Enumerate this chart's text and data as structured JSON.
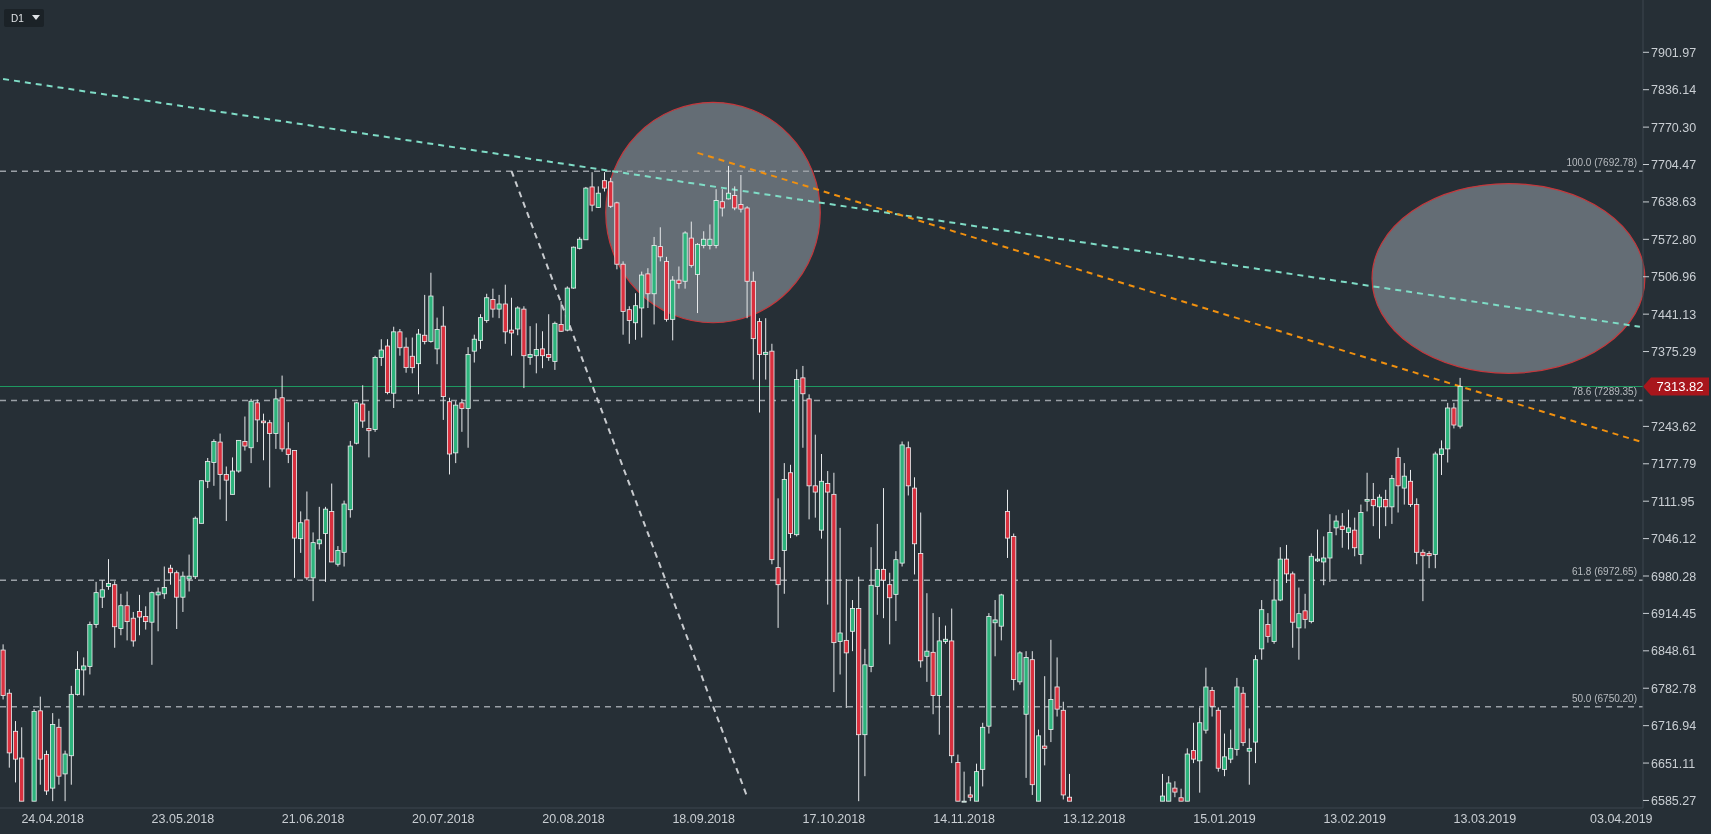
{
  "chart_data": {
    "type": "candlestick",
    "annotations": [
      "D1"
    ],
    "categories": [
      null,
      null,
      null,
      null,
      null,
      null,
      null,
      null,
      "24.04.2018",
      null,
      null,
      null,
      null,
      null,
      null,
      null,
      null,
      null,
      null,
      null,
      null,
      null,
      null,
      null,
      null,
      null,
      null,
      null,
      null,
      "23.05.2018",
      null,
      null,
      null,
      null,
      null,
      null,
      null,
      null,
      null,
      null,
      null,
      null,
      null,
      null,
      null,
      null,
      null,
      null,
      null,
      null,
      "21.06.2018",
      null,
      null,
      null,
      null,
      null,
      null,
      null,
      null,
      null,
      null,
      null,
      null,
      null,
      null,
      null,
      null,
      null,
      null,
      null,
      null,
      "20.07.2018",
      null,
      null,
      null,
      null,
      null,
      null,
      null,
      null,
      null,
      null,
      null,
      null,
      null,
      null,
      null,
      null,
      null,
      null,
      null,
      null,
      "20.08.2018",
      null,
      null,
      null,
      null,
      null,
      null,
      null,
      null,
      null,
      null,
      null,
      null,
      null,
      null,
      null,
      null,
      null,
      null,
      null,
      null,
      "18.09.2018",
      null,
      null,
      null,
      null,
      null,
      null,
      null,
      null,
      null,
      null,
      null,
      null,
      null,
      null,
      null,
      null,
      null,
      null,
      null,
      null,
      "17.10.2018",
      null,
      null,
      null,
      null,
      null,
      null,
      null,
      null,
      null,
      null,
      null,
      null,
      null,
      null,
      null,
      null,
      null,
      null,
      null,
      null,
      "14.11.2018",
      null,
      null,
      null,
      null,
      null,
      null,
      null,
      null,
      null,
      null,
      null,
      null,
      null,
      null,
      null,
      null,
      null,
      null,
      null,
      null,
      "13.12.2018",
      null,
      null,
      null,
      null,
      null,
      null,
      null,
      null,
      null,
      null,
      null,
      null,
      null,
      null,
      null,
      null,
      null,
      null,
      null,
      null,
      "15.01.2019",
      null,
      null,
      null,
      null,
      null,
      null,
      null,
      null,
      null,
      null,
      null,
      null,
      null,
      null,
      null,
      null,
      null,
      null,
      null,
      null,
      "13.02.2019",
      null,
      null,
      null,
      null,
      null,
      null,
      null,
      null,
      null,
      null,
      null,
      null,
      null,
      null,
      null,
      null,
      null,
      null,
      null,
      null,
      "13.03.2019",
      null,
      null,
      null,
      null,
      null,
      null,
      null,
      null,
      null,
      null,
      null,
      null,
      null,
      null,
      null,
      null,
      null,
      null,
      null,
      null,
      null,
      "03.04.2019",
      null,
      null,
      null
    ],
    "ohlc": [
      [
        6850,
        6860,
        6763,
        6770
      ],
      [
        6774,
        6781,
        6643,
        6669
      ],
      [
        6707,
        6725,
        6617,
        6658
      ],
      [
        6660,
        6714,
        6584,
        6584
      ],
      null,
      [
        6584,
        6746,
        6584,
        6742
      ],
      [
        6743,
        6768,
        6613,
        6658
      ],
      [
        6666,
        6673,
        6595,
        6602
      ],
      [
        6607,
        6739,
        6584,
        6719
      ],
      [
        6714,
        6729,
        6613,
        6628
      ],
      [
        6632,
        6673,
        6584,
        6667
      ],
      [
        6664,
        6787,
        6613,
        6772
      ],
      [
        6772,
        6848,
        6770,
        6816
      ],
      [
        6815,
        6837,
        6770,
        6822
      ],
      [
        6821,
        6900,
        6807,
        6895
      ],
      [
        6895,
        6970,
        6889,
        6951
      ],
      [
        6943,
        6973,
        6924,
        6956
      ],
      [
        6962,
        7010,
        6956,
        6967
      ],
      [
        6965,
        6971,
        6854,
        6891
      ],
      [
        6888,
        6949,
        6876,
        6928
      ],
      [
        6928,
        6953,
        6867,
        6900
      ],
      [
        6906,
        6917,
        6856,
        6866
      ],
      [
        6918,
        6947,
        6876,
        6908
      ],
      [
        6909,
        6927,
        6886,
        6900
      ],
      [
        6899,
        6953,
        6824,
        6951
      ],
      [
        6947,
        6960,
        6883,
        6952
      ],
      [
        6949,
        6997,
        6940,
        6960
      ],
      [
        6994,
        7000,
        6965,
        6986
      ],
      [
        6986,
        6990,
        6887,
        6943
      ],
      [
        6943,
        6988,
        6917,
        6980
      ],
      [
        6975,
        7018,
        6953,
        6980
      ],
      [
        6979,
        7085,
        6975,
        7082
      ],
      [
        7073,
        7148,
        7073,
        7148
      ],
      [
        7147,
        7188,
        7135,
        7182
      ],
      [
        7180,
        7221,
        7139,
        7217
      ],
      [
        7216,
        7231,
        7115,
        7159
      ],
      [
        7159,
        7173,
        7077,
        7149
      ],
      [
        7124,
        7189,
        7124,
        7165
      ],
      [
        7165,
        7219,
        7162,
        7219
      ],
      [
        7217,
        7261,
        7201,
        7209
      ],
      [
        7206,
        7292,
        7179,
        7288
      ],
      [
        7285,
        7291,
        7216,
        7255
      ],
      [
        7253,
        7266,
        7184,
        7250
      ],
      [
        7250,
        7255,
        7136,
        7231
      ],
      [
        7231,
        7309,
        7204,
        7292
      ],
      [
        7294,
        7333,
        7199,
        7204
      ],
      [
        7204,
        7251,
        7179,
        7194
      ],
      [
        7201,
        7201,
        6977,
        7047
      ],
      [
        7046,
        7094,
        7021,
        7074
      ],
      [
        7079,
        7129,
        6973,
        6977
      ],
      [
        6977,
        7057,
        6936,
        7039
      ],
      [
        7037,
        7102,
        7027,
        7044
      ],
      [
        7055,
        7102,
        6970,
        7098
      ],
      [
        7094,
        7143,
        7005,
        7005
      ],
      [
        7001,
        7033,
        6997,
        7025
      ],
      [
        7022,
        7113,
        6997,
        7107
      ],
      [
        7097,
        7218,
        7083,
        7209
      ],
      [
        7214,
        7286,
        7212,
        7285
      ],
      [
        7283,
        7316,
        7241,
        7253
      ],
      [
        7240,
        7271,
        7189,
        7236
      ],
      [
        7238,
        7368,
        7234,
        7365
      ],
      [
        7365,
        7397,
        7350,
        7378
      ],
      [
        7385,
        7397,
        7300,
        7303
      ],
      [
        7302,
        7419,
        7276,
        7410
      ],
      [
        7410,
        7415,
        7368,
        7382
      ],
      [
        7383,
        7400,
        7338,
        7347
      ],
      [
        7367,
        7400,
        7337,
        7347
      ],
      [
        7354,
        7415,
        7300,
        7406
      ],
      [
        7404,
        7475,
        7388,
        7393
      ],
      [
        7393,
        7514,
        7391,
        7473
      ],
      [
        7380,
        7435,
        7353,
        7414
      ],
      [
        7420,
        7455,
        7255,
        7296
      ],
      [
        7287,
        7294,
        7159,
        7195
      ],
      [
        7197,
        7288,
        7179,
        7281
      ],
      [
        7285,
        7292,
        7234,
        7275
      ],
      [
        7275,
        7383,
        7206,
        7370
      ],
      [
        7376,
        7405,
        7356,
        7397
      ],
      [
        7395,
        7441,
        7380,
        7435
      ],
      [
        7430,
        7477,
        7426,
        7470
      ],
      [
        7467,
        7486,
        7435,
        7450
      ],
      [
        7450,
        7475,
        7434,
        7459
      ],
      [
        7459,
        7493,
        7389,
        7410
      ],
      [
        7413,
        7470,
        7368,
        7408
      ],
      [
        7415,
        7455,
        7404,
        7452
      ],
      [
        7450,
        7455,
        7311,
        7368
      ],
      [
        7365,
        7420,
        7352,
        7370
      ],
      [
        7368,
        7425,
        7337,
        7379
      ],
      [
        7380,
        7411,
        7346,
        7368
      ],
      [
        7370,
        7441,
        7359,
        7365
      ],
      [
        7358,
        7428,
        7343,
        7425
      ],
      [
        7423,
        7464,
        7410,
        7411
      ],
      [
        7413,
        7490,
        7411,
        7487
      ],
      [
        7487,
        7560,
        7486,
        7559
      ],
      [
        7557,
        7577,
        7555,
        7573
      ],
      [
        7572,
        7665,
        7572,
        7663
      ],
      [
        7665,
        7691,
        7622,
        7633
      ],
      [
        7629,
        7666,
        7628,
        7654
      ],
      [
        7676,
        7691,
        7657,
        7663
      ],
      [
        7674,
        7681,
        7628,
        7631
      ],
      [
        7637,
        7639,
        7520,
        7529
      ],
      [
        7529,
        7534,
        7405,
        7446
      ],
      [
        7449,
        7455,
        7389,
        7430
      ],
      [
        7426,
        7478,
        7396,
        7456
      ],
      [
        7452,
        7516,
        7400,
        7510
      ],
      [
        7512,
        7522,
        7452,
        7477
      ],
      [
        7477,
        7577,
        7423,
        7562
      ],
      [
        7560,
        7594,
        7534,
        7542
      ],
      [
        7534,
        7542,
        7428,
        7432
      ],
      [
        7432,
        7508,
        7395,
        7501
      ],
      [
        7501,
        7525,
        7486,
        7495
      ],
      [
        7499,
        7587,
        7486,
        7584
      ],
      [
        7575,
        7604,
        7523,
        7527
      ],
      [
        7511,
        7566,
        7443,
        7564
      ],
      [
        7562,
        7587,
        7557,
        7573
      ],
      [
        7562,
        7599,
        7555,
        7573
      ],
      [
        7562,
        7661,
        7557,
        7641
      ],
      [
        7639,
        7661,
        7613,
        7628
      ],
      [
        7644,
        7702,
        7643,
        7654
      ],
      [
        7650,
        7666,
        7624,
        7628
      ],
      [
        7634,
        7686,
        7620,
        7626
      ],
      [
        7628,
        7631,
        7434,
        7499
      ],
      [
        7499,
        7516,
        7326,
        7398
      ],
      [
        7428,
        7434,
        7268,
        7370
      ],
      [
        7370,
        7434,
        7326,
        7374
      ],
      [
        7376,
        7389,
        7001,
        7009
      ],
      [
        6995,
        7117,
        6889,
        6965
      ],
      [
        7025,
        7179,
        6949,
        7150
      ],
      [
        7162,
        7176,
        7047,
        7055
      ],
      [
        7053,
        7344,
        7050,
        7326
      ],
      [
        7329,
        7350,
        7206,
        7301
      ],
      [
        7292,
        7300,
        7080,
        7139
      ],
      [
        7139,
        7229,
        7083,
        7128
      ],
      [
        7061,
        7195,
        7046,
        7147
      ],
      [
        7143,
        7165,
        6930,
        7128
      ],
      [
        7124,
        7162,
        6776,
        6863
      ],
      [
        6865,
        7065,
        6807,
        6880
      ],
      [
        6867,
        6975,
        6748,
        6845
      ],
      [
        6883,
        6938,
        6848,
        6923
      ],
      [
        6923,
        6979,
        6584,
        6701
      ],
      [
        6701,
        6852,
        6628,
        6824
      ],
      [
        6821,
        7031,
        6811,
        6964
      ],
      [
        6962,
        7072,
        6912,
        6992
      ],
      [
        6992,
        7135,
        6906,
        6973
      ],
      [
        6965,
        6986,
        6860,
        6942
      ],
      [
        6948,
        7024,
        6901,
        7009
      ],
      [
        7003,
        7217,
        6997,
        7211
      ],
      [
        7206,
        7217,
        7122,
        7139
      ],
      [
        7135,
        7154,
        6983,
        7037
      ],
      [
        7020,
        7092,
        6819,
        6831
      ],
      [
        6839,
        6950,
        6794,
        6848
      ],
      [
        6846,
        6915,
        6737,
        6770
      ],
      [
        6770,
        6908,
        6701,
        6866
      ],
      [
        6865,
        6893,
        6861,
        6869
      ],
      [
        6866,
        6923,
        6651,
        6664
      ],
      [
        6652,
        6666,
        6584,
        6584
      ],
      [
        6584,
        6636,
        6584,
        6584
      ],
      [
        6595,
        6610,
        6584,
        6591
      ],
      [
        6584,
        6650,
        6584,
        6636
      ],
      [
        6640,
        6722,
        6610,
        6714
      ],
      [
        6716,
        6915,
        6703,
        6909
      ],
      [
        6898,
        6938,
        6839,
        6903
      ],
      [
        6892,
        6949,
        6867,
        6947
      ],
      [
        7094,
        7132,
        7012,
        7047
      ],
      [
        7050,
        7055,
        6779,
        6798
      ],
      [
        6794,
        6848,
        6789,
        6845
      ],
      [
        6737,
        6848,
        6625,
        6837
      ],
      [
        6833,
        6848,
        6595,
        6613
      ],
      [
        6584,
        6710,
        6584,
        6699
      ],
      [
        6681,
        6804,
        6647,
        6677
      ],
      [
        6710,
        6868,
        6688,
        6763
      ],
      [
        6785,
        6837,
        6733,
        6746
      ],
      [
        6744,
        6759,
        6587,
        6595
      ],
      [
        6591,
        6632,
        6584,
        6584
      ],
      null,
      null,
      null,
      null,
      null,
      null,
      null,
      null,
      null,
      null,
      null,
      null,
      null,
      null,
      [
        6584,
        6632,
        6584,
        6593
      ],
      [
        6584,
        6628,
        6584,
        6616
      ],
      [
        6607,
        6619,
        6591,
        6600
      ],
      [
        6590,
        6606,
        6584,
        6584
      ],
      [
        6584,
        6677,
        6584,
        6667
      ],
      [
        6673,
        6722,
        6651,
        6658
      ],
      [
        6655,
        6749,
        6599,
        6722
      ],
      [
        6709,
        6819,
        6703,
        6785
      ],
      [
        6779,
        6785,
        6733,
        6751
      ],
      [
        6744,
        6749,
        6636,
        6642
      ],
      [
        6640,
        6703,
        6628,
        6662
      ],
      [
        6658,
        6710,
        6651,
        6677
      ],
      [
        6675,
        6801,
        6664,
        6785
      ],
      [
        6774,
        6785,
        6681,
        6687
      ],
      [
        6672,
        6712,
        6613,
        6677
      ],
      [
        6688,
        6841,
        6651,
        6833
      ],
      [
        6852,
        6938,
        6833,
        6921
      ],
      [
        6895,
        6915,
        6863,
        6874
      ],
      [
        6865,
        6975,
        6861,
        6938
      ],
      [
        6938,
        7031,
        6936,
        7010
      ],
      [
        7010,
        7035,
        6968,
        6984
      ],
      [
        6984,
        6988,
        6854,
        6899
      ],
      [
        6889,
        6960,
        6833,
        6914
      ],
      [
        6919,
        6949,
        6888,
        6904
      ],
      [
        6900,
        7020,
        6897,
        7015
      ],
      [
        7007,
        7062,
        7005,
        7010
      ],
      [
        7005,
        7050,
        6964,
        7012
      ],
      [
        7012,
        7089,
        6970,
        7057
      ],
      [
        7065,
        7087,
        7052,
        7077
      ],
      [
        7068,
        7091,
        7030,
        7062
      ],
      [
        7057,
        7097,
        7027,
        7065
      ],
      [
        7061,
        7083,
        7015,
        7030
      ],
      [
        7018,
        7106,
        7001,
        7092
      ],
      [
        7112,
        7162,
        7094,
        7115
      ],
      [
        7115,
        7144,
        7068,
        7104
      ],
      [
        7102,
        7124,
        7046,
        7119
      ],
      [
        7115,
        7132,
        7068,
        7102
      ],
      [
        7102,
        7158,
        7072,
        7152
      ],
      [
        7189,
        7206,
        7092,
        7139
      ],
      [
        7135,
        7179,
        7106,
        7156
      ],
      [
        7147,
        7167,
        7102,
        7106
      ],
      [
        7106,
        7117,
        7001,
        7022
      ],
      [
        7022,
        7027,
        6936,
        7016
      ],
      [
        7020,
        7024,
        6994,
        7016
      ],
      [
        7018,
        7199,
        6994,
        7195
      ],
      [
        7194,
        7219,
        7158,
        7204
      ],
      [
        7204,
        7285,
        7180,
        7276
      ],
      [
        7276,
        7285,
        7240,
        7246
      ],
      [
        7244,
        7329,
        7240,
        7314
      ],
      null,
      null,
      null,
      null,
      null,
      null,
      null,
      null,
      null,
      null,
      null,
      null,
      null,
      null,
      null,
      null,
      null,
      null,
      null,
      null,
      null,
      null,
      null,
      null,
      null,
      null,
      null,
      null,
      null
    ],
    "ylim": [
      6572,
      7994
    ],
    "yticks": [
      7901.97,
      7836.14,
      {
        "value": 7770.3,
        "label": "7770.30"
      },
      7704.47,
      7638.63,
      {
        "value": 7572.8,
        "label": "7572.80"
      },
      7506.96,
      7441.13,
      7375.29,
      7243.62,
      7177.79,
      7111.95,
      7046.12,
      6980.28,
      6914.45,
      6848.61,
      6782.78,
      6716.94,
      6651.11,
      6585.27
    ],
    "series": [
      {
        "type": "line",
        "color": "#7fdcc6",
        "line_style": "dashed",
        "values": [
          7855,
          null,
          null,
          null,
          null,
          null,
          null,
          null,
          null,
          null,
          null,
          null,
          null,
          null,
          null,
          null,
          null,
          null,
          null,
          null,
          null,
          null,
          null,
          null,
          null,
          null,
          null,
          null,
          null,
          null,
          null,
          null,
          null,
          null,
          null,
          null,
          null,
          null,
          null,
          null,
          null,
          null,
          null,
          null,
          null,
          null,
          null,
          null,
          null,
          null,
          null,
          null,
          null,
          null,
          null,
          null,
          null,
          null,
          null,
          null,
          null,
          null,
          null,
          null,
          null,
          null,
          null,
          null,
          null,
          null,
          null,
          null,
          null,
          null,
          null,
          null,
          null,
          null,
          null,
          null,
          null,
          null,
          null,
          null,
          null,
          null,
          null,
          null,
          null,
          null,
          null,
          null,
          null,
          null,
          null,
          null,
          null,
          null,
          null,
          null,
          null,
          null,
          null,
          null,
          null,
          null,
          null,
          null,
          null,
          null,
          null,
          null,
          null,
          null,
          null,
          null,
          null,
          null,
          null,
          null,
          null,
          null,
          null,
          null,
          null,
          null,
          null,
          null,
          null,
          null,
          null,
          null,
          null,
          null,
          null,
          null,
          null,
          null,
          null,
          null,
          null,
          null,
          null,
          null,
          null,
          null,
          null,
          null,
          null,
          null,
          null,
          null,
          null,
          null,
          null,
          null,
          null,
          null,
          null,
          null,
          null,
          null,
          null,
          null,
          null,
          null,
          null,
          null,
          null,
          null,
          null,
          null,
          null,
          null,
          null,
          null,
          null,
          null,
          null,
          null,
          null,
          null,
          null,
          null,
          null,
          null,
          null,
          null,
          null,
          null,
          null,
          null,
          null,
          null,
          null,
          null,
          null,
          null,
          null,
          null,
          null,
          null,
          null,
          null,
          null,
          null,
          null,
          null,
          null,
          null,
          null,
          null,
          null,
          null,
          null,
          null,
          null,
          null,
          null,
          null,
          null,
          null,
          null,
          null,
          null,
          null,
          null,
          null,
          null,
          null,
          null,
          null,
          null,
          null,
          null,
          null,
          null,
          null,
          null,
          null,
          null,
          null,
          null,
          null,
          null,
          null,
          null,
          null,
          null,
          null,
          null,
          null,
          null,
          null,
          null,
          null,
          null,
          null,
          null,
          null,
          null,
          null,
          null,
          null,
          7419
        ]
      },
      {
        "type": "line",
        "color": "#f0900f",
        "line_style": "dashed",
        "values": [
          null,
          null,
          null,
          null,
          null,
          null,
          null,
          null,
          null,
          null,
          null,
          null,
          null,
          null,
          null,
          null,
          null,
          null,
          null,
          null,
          null,
          null,
          null,
          null,
          null,
          null,
          null,
          null,
          null,
          null,
          null,
          null,
          null,
          null,
          null,
          null,
          null,
          null,
          null,
          null,
          null,
          null,
          null,
          null,
          null,
          null,
          null,
          null,
          null,
          null,
          null,
          null,
          null,
          null,
          null,
          null,
          null,
          null,
          null,
          null,
          null,
          null,
          null,
          null,
          null,
          null,
          null,
          null,
          null,
          null,
          null,
          null,
          null,
          null,
          null,
          null,
          null,
          null,
          null,
          null,
          null,
          null,
          null,
          null,
          null,
          null,
          null,
          null,
          null,
          null,
          null,
          null,
          null,
          null,
          null,
          null,
          null,
          null,
          null,
          null,
          null,
          null,
          null,
          null,
          null,
          null,
          null,
          null,
          null,
          null,
          null,
          null,
          7725,
          null,
          null,
          null,
          null,
          null,
          null,
          null,
          null,
          null,
          null,
          null,
          null,
          null,
          null,
          null,
          null,
          null,
          null,
          null,
          null,
          null,
          null,
          null,
          null,
          null,
          null,
          null,
          null,
          null,
          null,
          null,
          null,
          null,
          null,
          null,
          null,
          null,
          null,
          null,
          null,
          null,
          null,
          null,
          null,
          null,
          null,
          null,
          null,
          null,
          null,
          null,
          null,
          null,
          null,
          null,
          null,
          null,
          null,
          null,
          null,
          null,
          null,
          null,
          null,
          null,
          null,
          null,
          null,
          null,
          null,
          null,
          null,
          null,
          null,
          null,
          null,
          null,
          null,
          null,
          null,
          null,
          null,
          null,
          null,
          null,
          null,
          null,
          null,
          null,
          null,
          null,
          null,
          null,
          null,
          null,
          null,
          null,
          null,
          null,
          null,
          null,
          null,
          null,
          null,
          null,
          null,
          null,
          null,
          null,
          null,
          null,
          null,
          null,
          null,
          null,
          null,
          null,
          null,
          null,
          null,
          null,
          null,
          null,
          null,
          null,
          null,
          null,
          null,
          null,
          null,
          null,
          null,
          null,
          null,
          null,
          null,
          null,
          null,
          null,
          null,
          null,
          null,
          null,
          null,
          null,
          null,
          null,
          null,
          null,
          null,
          null,
          7217
        ]
      },
      {
        "type": "line",
        "color": "#c8cbcf",
        "line_style": "dashed",
        "values": [
          null,
          null,
          null,
          null,
          null,
          null,
          null,
          null,
          null,
          null,
          null,
          null,
          null,
          null,
          null,
          null,
          null,
          null,
          null,
          null,
          null,
          null,
          null,
          null,
          null,
          null,
          null,
          null,
          null,
          null,
          null,
          null,
          null,
          null,
          null,
          null,
          null,
          null,
          null,
          null,
          null,
          null,
          null,
          null,
          null,
          null,
          null,
          null,
          null,
          null,
          null,
          null,
          null,
          null,
          null,
          null,
          null,
          null,
          null,
          null,
          null,
          null,
          null,
          null,
          null,
          null,
          null,
          null,
          null,
          null,
          null,
          null,
          null,
          null,
          null,
          null,
          null,
          null,
          null,
          null,
          null,
          null,
          7693,
          null,
          null,
          null,
          null,
          null,
          null,
          null,
          null,
          null,
          null,
          null,
          null,
          null,
          null,
          null,
          null,
          null,
          null,
          null,
          null,
          null,
          null,
          null,
          null,
          null,
          null,
          null,
          null,
          null,
          null,
          null,
          null,
          null,
          null,
          null,
          null,
          null,
          6592,
          null,
          null,
          null,
          null,
          null,
          null,
          null,
          null,
          null,
          null,
          null,
          null,
          null,
          null,
          null,
          null,
          null,
          null,
          null,
          null,
          null,
          null,
          null,
          null,
          null,
          null,
          null,
          null,
          null,
          null,
          null,
          null,
          null,
          null,
          null,
          null,
          null,
          null,
          null,
          null,
          null,
          null,
          null,
          null,
          null,
          null,
          null,
          null,
          null,
          null,
          null,
          null,
          null,
          null,
          null,
          null,
          null,
          null,
          null,
          null,
          null,
          null,
          null,
          null,
          null,
          null,
          null,
          null,
          null,
          null,
          null,
          null,
          null,
          null,
          null,
          null,
          null,
          null,
          null,
          null,
          null,
          null,
          null,
          null,
          null,
          null,
          null,
          null,
          null,
          null,
          null,
          null,
          null,
          null,
          null,
          null,
          null,
          null,
          null,
          null,
          null,
          null,
          null,
          null,
          null,
          null,
          null,
          null,
          null,
          null,
          null,
          null,
          null,
          null,
          null,
          null,
          null,
          null,
          null,
          null,
          null,
          null,
          null,
          null,
          null,
          null,
          null,
          null,
          null,
          null,
          null,
          null,
          null,
          null,
          null,
          null,
          null,
          null,
          null,
          null,
          null,
          null,
          null,
          null
        ]
      }
    ],
    "ref_lines": [
      {
        "axis": "y",
        "value": 7692.78,
        "label": "100.0 (7692.78)",
        "color": "#9aa0a6",
        "line_style": "dashed"
      },
      {
        "axis": "y",
        "value": 7289.35,
        "label": "78.6 (7289.35)",
        "color": "#9aa0a6",
        "line_style": "dashed"
      },
      {
        "axis": "y",
        "value": 6972.65,
        "label": "61.8 (6972.65)",
        "color": "#9aa0a6",
        "line_style": "dashed"
      },
      {
        "axis": "y",
        "value": 6750.2,
        "label": "50.0 (6750.20)",
        "color": "#9aa0a6",
        "line_style": "dashed"
      },
      {
        "axis": "y",
        "value": 7313.82,
        "label": "7313.82",
        "color": "#1f9a62",
        "line_style": "solid"
      }
    ]
  }
}
